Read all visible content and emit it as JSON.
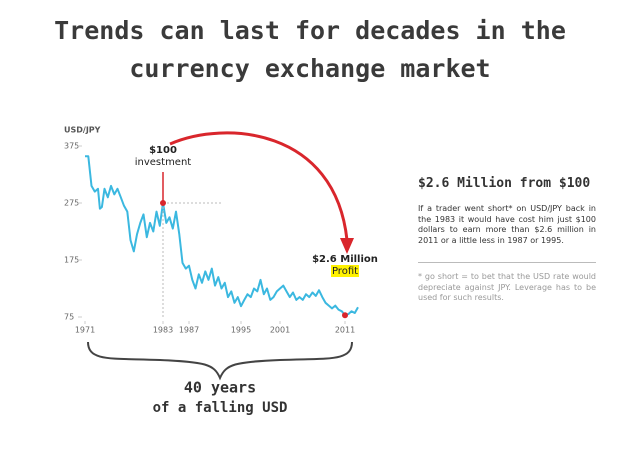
{
  "title_lines": [
    "Trends can last for decades in the",
    "currency exchange market"
  ],
  "chart_data": {
    "type": "line",
    "ylabel": "USD/JPY",
    "x": [
      1971,
      1971.5,
      1972,
      1972.5,
      1973,
      1973.3,
      1973.6,
      1974,
      1974.5,
      1975,
      1975.5,
      1976,
      1976.5,
      1977,
      1977.5,
      1978,
      1978.5,
      1979,
      1979.5,
      1980,
      1980.5,
      1981,
      1981.5,
      1982,
      1982.5,
      1983,
      1983.5,
      1984,
      1984.5,
      1985,
      1985.5,
      1986,
      1986.5,
      1987,
      1987.5,
      1988,
      1988.5,
      1989,
      1989.5,
      1990,
      1990.5,
      1991,
      1991.5,
      1992,
      1992.5,
      1993,
      1993.5,
      1994,
      1994.5,
      1995,
      1995.5,
      1996,
      1996.5,
      1997,
      1997.5,
      1998,
      1998.5,
      1999,
      1999.5,
      2000,
      2000.5,
      2001,
      2001.5,
      2002,
      2002.5,
      2003,
      2003.5,
      2004,
      2004.5,
      2005,
      2005.5,
      2006,
      2006.5,
      2007,
      2007.5,
      2008,
      2008.5,
      2009,
      2009.5,
      2010,
      2010.5,
      2011,
      2011.5,
      2012,
      2012.5,
      2013
    ],
    "series": [
      {
        "name": "USD/JPY",
        "color": "#3bb8e0",
        "values": [
          357,
          357,
          305,
          295,
          300,
          265,
          268,
          300,
          285,
          305,
          290,
          300,
          285,
          270,
          260,
          210,
          190,
          220,
          240,
          255,
          215,
          240,
          225,
          260,
          235,
          275,
          240,
          250,
          230,
          260,
          220,
          170,
          160,
          165,
          140,
          125,
          150,
          135,
          155,
          140,
          160,
          130,
          145,
          125,
          135,
          110,
          120,
          100,
          110,
          94,
          105,
          115,
          110,
          125,
          120,
          140,
          115,
          125,
          105,
          110,
          120,
          125,
          130,
          120,
          110,
          118,
          105,
          110,
          105,
          115,
          110,
          118,
          112,
          122,
          110,
          100,
          95,
          90,
          95,
          88,
          85,
          78,
          80,
          85,
          82,
          92
        ]
      }
    ],
    "xlim": [
      1971,
      2013
    ],
    "ylim": [
      75,
      375
    ],
    "xticks": [
      1971,
      1983,
      1987,
      1995,
      2001,
      2011
    ],
    "xtick_colors": [
      "#555",
      "#555",
      "#aaa",
      "#aaa",
      "#555",
      "#555"
    ],
    "yticks": [
      75,
      175,
      275,
      375
    ],
    "annotations": [
      {
        "lines": [
          "$100",
          "investment"
        ],
        "x": 1983,
        "y": 275
      },
      {
        "lines": [
          "$2.6 Million",
          "Profit"
        ],
        "x": 2011,
        "y": 78
      }
    ],
    "brace_lines": [
      "40 years",
      "of a falling USD"
    ]
  },
  "sidebar": {
    "heading": "$2.6 Million from $100",
    "body": "If a trader went short* on USD/JPY back in the 1983 it would have cost him just $100 dollars to earn more than $2.6 million in 2011 or a little less in 1987 or 1995.",
    "footnote": "* go short = to bet that the USD rate would depreciate against JPY. Leverage has to be used for such results."
  }
}
